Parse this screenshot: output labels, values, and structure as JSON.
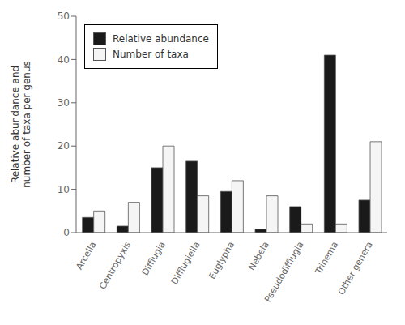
{
  "chart_data": {
    "type": "bar",
    "categories": [
      "Arcella",
      "Centropyxis",
      "Difflugia",
      "Difflugiella",
      "Euglypha",
      "Nebela",
      "Pseudodifflugia",
      "Trinema",
      "Other genera"
    ],
    "series": [
      {
        "name": "Relative abundance",
        "color": "#1a1a1a",
        "values": [
          3.5,
          1.5,
          15.0,
          16.5,
          9.5,
          0.8,
          6.0,
          41.0,
          7.5
        ]
      },
      {
        "name": "Number of taxa",
        "color": "#f5f5f5",
        "values": [
          5.0,
          7.0,
          20.0,
          8.5,
          12.0,
          8.5,
          2.0,
          2.0,
          21.0
        ]
      }
    ],
    "ylabel": "Relative abundance and\nnumber of taxa per genus",
    "ylim": [
      0,
      50
    ],
    "yticks": [
      0,
      10,
      20,
      30,
      40,
      50
    ],
    "grid": false,
    "legend": "upper left"
  }
}
